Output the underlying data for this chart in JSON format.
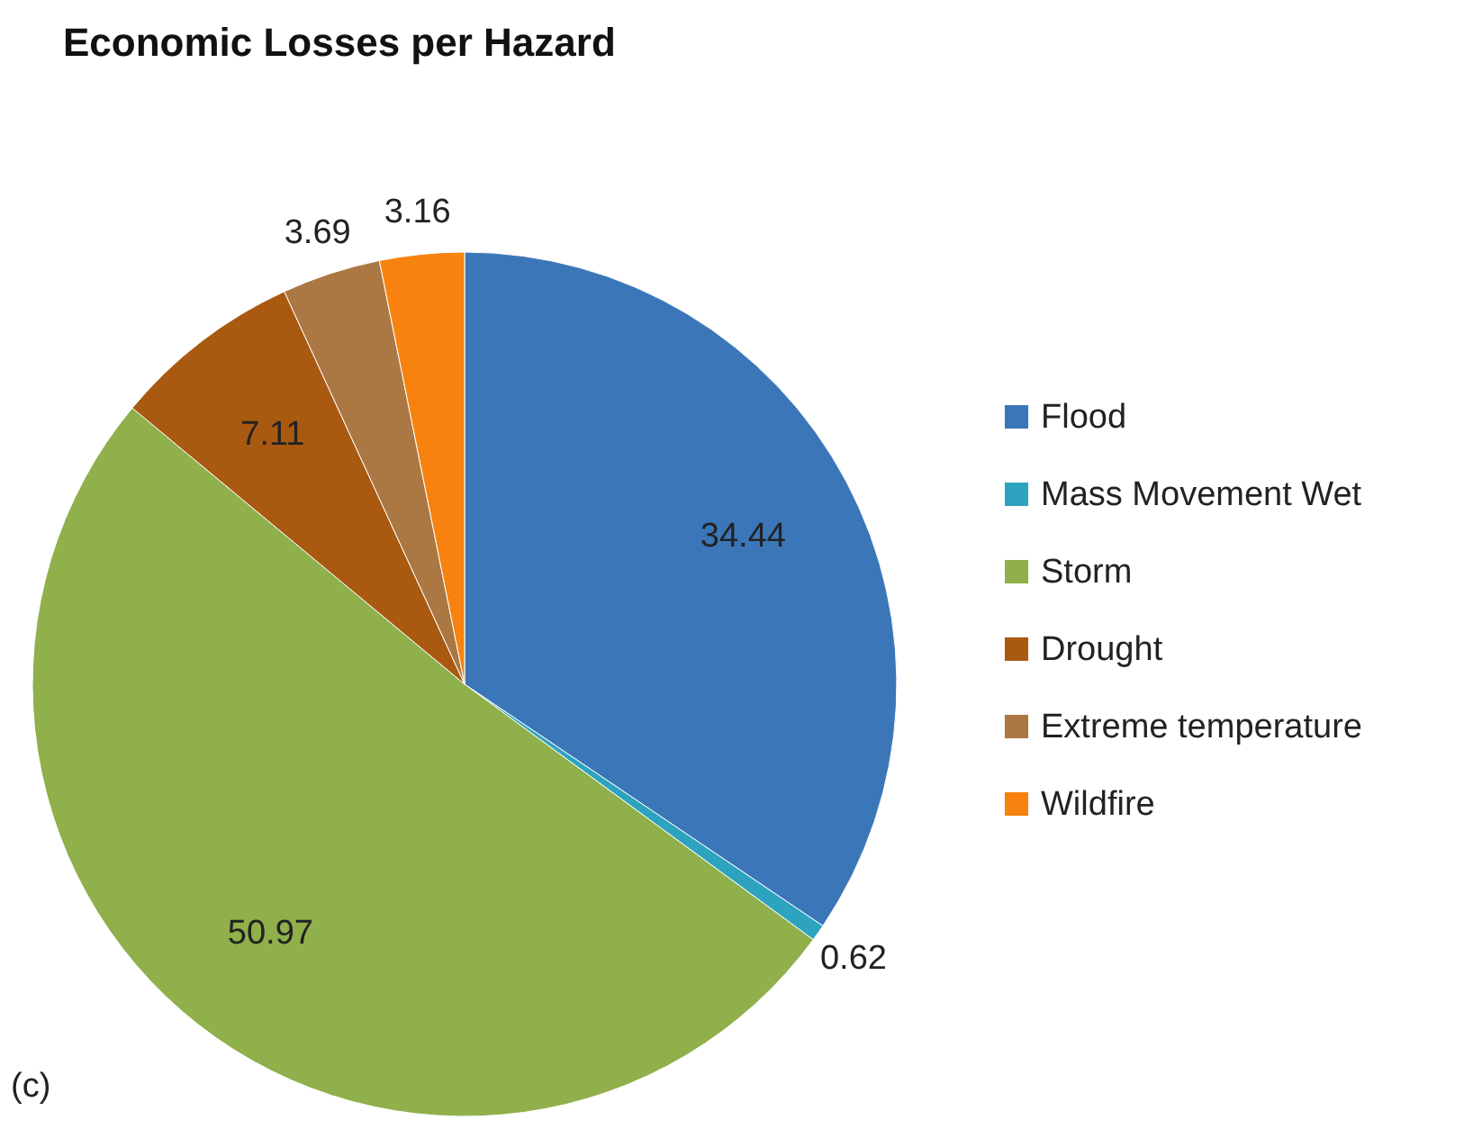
{
  "chart_data": {
    "type": "pie",
    "title": "Economic Losses per Hazard",
    "categories": [
      "Flood",
      "Mass Movement Wet",
      "Storm",
      "Drought",
      "Extreme temperature",
      "Wildfire"
    ],
    "values": [
      34.44,
      0.62,
      50.97,
      7.11,
      3.69,
      3.16
    ],
    "colors": [
      "#3b76b8",
      "#2ea3bf",
      "#8fb04a",
      "#a95a10",
      "#ab7843",
      "#f7820f"
    ],
    "data_labels": true,
    "legend": "right",
    "annotations": [
      "(c)"
    ]
  }
}
